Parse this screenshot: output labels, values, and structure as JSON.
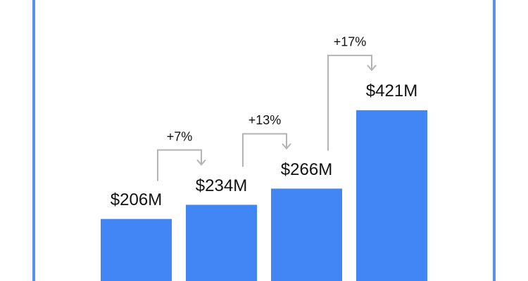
{
  "chart_data": {
    "type": "bar",
    "values": [
      206,
      234,
      266,
      421
    ],
    "value_labels": [
      "$206M",
      "$234M",
      "$266M",
      "$421M"
    ],
    "color": "#4285f4",
    "annotations": [
      "+7%",
      "+13%",
      "+17%"
    ]
  }
}
